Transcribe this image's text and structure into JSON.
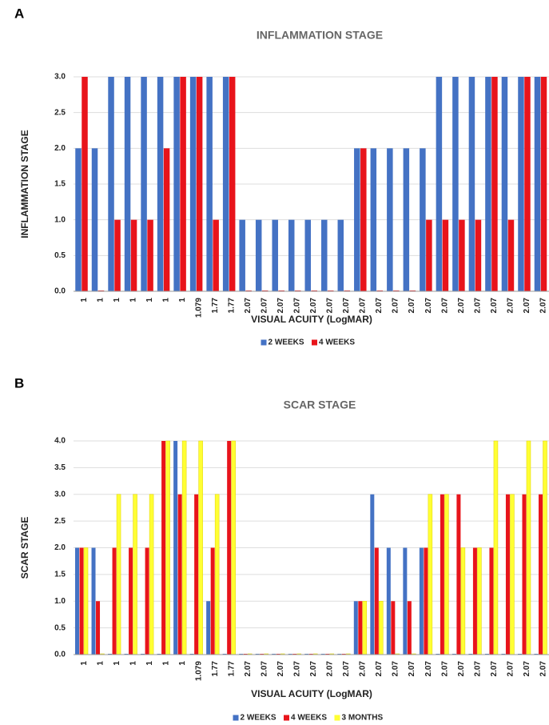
{
  "chart_data": [
    {
      "type": "bar",
      "panel": "A",
      "title": "INFLAMMATION STAGE",
      "x_label": "VISUAL ACUITY (LogMAR)",
      "y_label": "INFLAMMATION STAGE",
      "categories": [
        "1",
        "1",
        "1",
        "1",
        "1",
        "1",
        "1",
        "1.079",
        "1.77",
        "1.77",
        "2.07",
        "2.07",
        "2.07",
        "2.07",
        "2.07",
        "2.07",
        "2.07",
        "2.07",
        "2.07",
        "2.07",
        "2.07",
        "2.07",
        "2.07",
        "2.07",
        "2.07",
        "2.07",
        "2.07",
        "2.07",
        "2.07"
      ],
      "series": [
        {
          "name": "2 WEEKS",
          "color": "#4472c4",
          "values": [
            2,
            2,
            3,
            3,
            3,
            3,
            3,
            3,
            3,
            3,
            1,
            1,
            1,
            1,
            1,
            1,
            1,
            2,
            2,
            2,
            2,
            2,
            3,
            3,
            3,
            3,
            3,
            3,
            3
          ]
        },
        {
          "name": "4 WEEKS",
          "color": "#e8141b",
          "values": [
            3,
            0,
            1,
            1,
            1,
            2,
            3,
            3,
            1,
            3,
            0,
            0,
            0,
            0,
            0,
            0,
            0,
            2,
            0,
            0,
            0,
            1,
            1,
            1,
            1,
            3,
            1,
            3,
            3
          ]
        }
      ],
      "ylim": [
        0,
        3
      ],
      "yticks": [
        {
          "value": 0,
          "label": "0.0"
        },
        {
          "value": 0.5,
          "label": "0.5"
        },
        {
          "value": 1,
          "label": "1.0"
        },
        {
          "value": 1.5,
          "label": "1.5"
        },
        {
          "value": 2,
          "label": "2.0"
        },
        {
          "value": 2.5,
          "label": "2.5"
        },
        {
          "value": 3,
          "label": "3.0"
        }
      ],
      "grid": true,
      "legend": "bottom"
    },
    {
      "type": "bar",
      "panel": "B",
      "title": "SCAR STAGE",
      "x_label": "VISUAL ACUITY (LogMAR)",
      "y_label": "SCAR STAGE",
      "categories": [
        "1",
        "1",
        "1",
        "1",
        "1",
        "1",
        "1",
        "1.079",
        "1.77",
        "1.77",
        "2.07",
        "2.07",
        "2.07",
        "2.07",
        "2.07",
        "2.07",
        "2.07",
        "2.07",
        "2.07",
        "2.07",
        "2.07",
        "2.07",
        "2.07",
        "2.07",
        "2.07",
        "2.07",
        "2.07",
        "2.07",
        "2.07"
      ],
      "series": [
        {
          "name": "2 WEEKS",
          "color": "#4472c4",
          "values": [
            2,
            2,
            0,
            0,
            0,
            0,
            4,
            0,
            1,
            0,
            0,
            0,
            0,
            0,
            0,
            0,
            0,
            1,
            3,
            2,
            2,
            2,
            0,
            0,
            0,
            0,
            0,
            0,
            0
          ]
        },
        {
          "name": "4 WEEKS",
          "color": "#e8141b",
          "values": [
            2,
            1,
            2,
            2,
            2,
            4,
            3,
            3,
            2,
            4,
            0,
            0,
            0,
            0,
            0,
            0,
            0,
            1,
            2,
            1,
            1,
            2,
            3,
            3,
            2,
            2,
            3,
            3,
            3
          ]
        },
        {
          "name": "3 MONTHS",
          "color": "#ffff33",
          "values": [
            2,
            0,
            3,
            3,
            3,
            4,
            4,
            4,
            3,
            4,
            0,
            0,
            0,
            0,
            0,
            0,
            0,
            1,
            1,
            0,
            0,
            3,
            3,
            2,
            2,
            4,
            3,
            4,
            4
          ]
        }
      ],
      "ylim": [
        0,
        4
      ],
      "yticks": [
        {
          "value": 0,
          "label": "0.0"
        },
        {
          "value": 0.5,
          "label": "0.5"
        },
        {
          "value": 1,
          "label": "1.0"
        },
        {
          "value": 1.5,
          "label": "1.5"
        },
        {
          "value": 2,
          "label": "2.0"
        },
        {
          "value": 2.5,
          "label": "2.5"
        },
        {
          "value": 3,
          "label": "3.0"
        },
        {
          "value": 3.5,
          "label": "3.5"
        },
        {
          "value": 4,
          "label": "4.0"
        }
      ],
      "grid": true,
      "legend": "bottom"
    }
  ]
}
